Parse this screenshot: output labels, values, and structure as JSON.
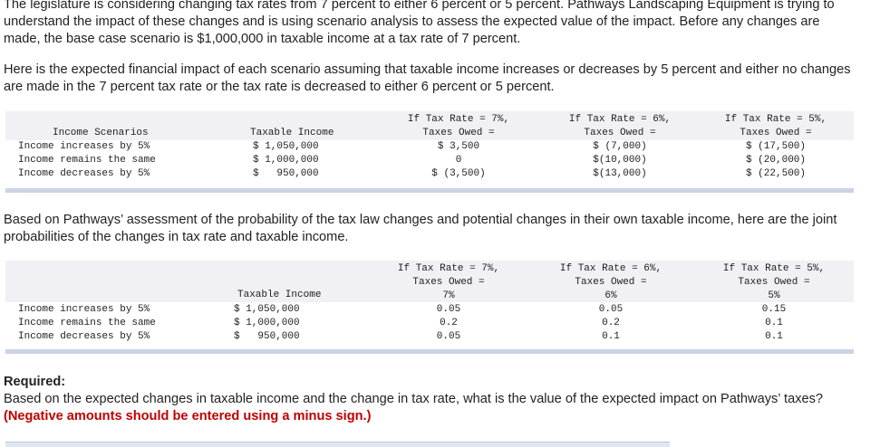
{
  "intro": "The legislature is considering changing tax rates from 7 percent to either 6 percent or 5 percent. Pathways Landscaping Equipment is trying to understand the impact of these changes and is using scenario analysis to assess the expected value of the impact. Before any changes are made, the base case scenario is $1,000,000 in taxable income at a tax rate of 7 percent.",
  "scenario_intro": "Here is the expected financial impact of each scenario assuming that taxable income increases or decreases by 5 percent and either no changes are made in the 7 percent tax rate or the tax rate is decreased to either 6 percent or 5 percent.",
  "table1": {
    "headers": {
      "scenarios": "Income Scenarios",
      "taxable": "Taxable Income",
      "rate7_line1": "If Tax Rate = 7%,",
      "rate7_line2": "Taxes Owed =",
      "rate6_line1": "If Tax Rate = 6%,",
      "rate6_line2": "Taxes Owed =",
      "rate5_line1": "If Tax Rate = 5%,",
      "rate5_line2": "Taxes Owed ="
    },
    "rows": [
      {
        "scenario": "Income increases by 5%",
        "taxable": "$ 1,050,000",
        "t7": "$ 3,500",
        "t6": "$ (7,000)",
        "t5": "$ (17,500)"
      },
      {
        "scenario": "Income remains the same",
        "taxable": "$ 1,000,000",
        "t7": "0",
        "t6": "$(10,000)",
        "t5": "$ (20,000)"
      },
      {
        "scenario": "Income decreases by 5%",
        "taxable": "$   950,000",
        "t7": "$ (3,500)",
        "t6": "$(13,000)",
        "t5": "$ (22,500)"
      }
    ]
  },
  "probability_intro": "Based on Pathways’ assessment of the probability of the tax law changes and potential changes in their own taxable income, here are the joint probabilities of the changes in tax rate and taxable income.",
  "table2": {
    "headers": {
      "taxable": "Taxable Income",
      "rate7_line1": "If Tax Rate = 7%,",
      "rate7_line2": "Taxes Owed =",
      "rate7_line3": "7%",
      "rate6_line1": "If Tax Rate = 6%,",
      "rate6_line2": "Taxes Owed =",
      "rate6_line3": "6%",
      "rate5_line1": "If Tax Rate = 5%,",
      "rate5_line2": "Taxes Owed =",
      "rate5_line3": "5%"
    },
    "rows": [
      {
        "scenario": "Income increases by 5%",
        "taxable": "$ 1,050,000",
        "p7": "0.05",
        "p6": "0.05",
        "p5": "0.15"
      },
      {
        "scenario": "Income remains the same",
        "taxable": "$ 1,000,000",
        "p7": "0.2",
        "p6": "0.2",
        "p5": "0.1"
      },
      {
        "scenario": "Income decreases by 5%",
        "taxable": "$   950,000",
        "p7": "0.05",
        "p6": "0.1",
        "p5": "0.1"
      }
    ]
  },
  "required": {
    "title": "Required:",
    "text": "Based on the expected changes in taxable income and the change in tax rate, what is the value of the expected impact on Pathways’ taxes?",
    "note": "(Negative amounts should be entered using a minus sign.)"
  }
}
